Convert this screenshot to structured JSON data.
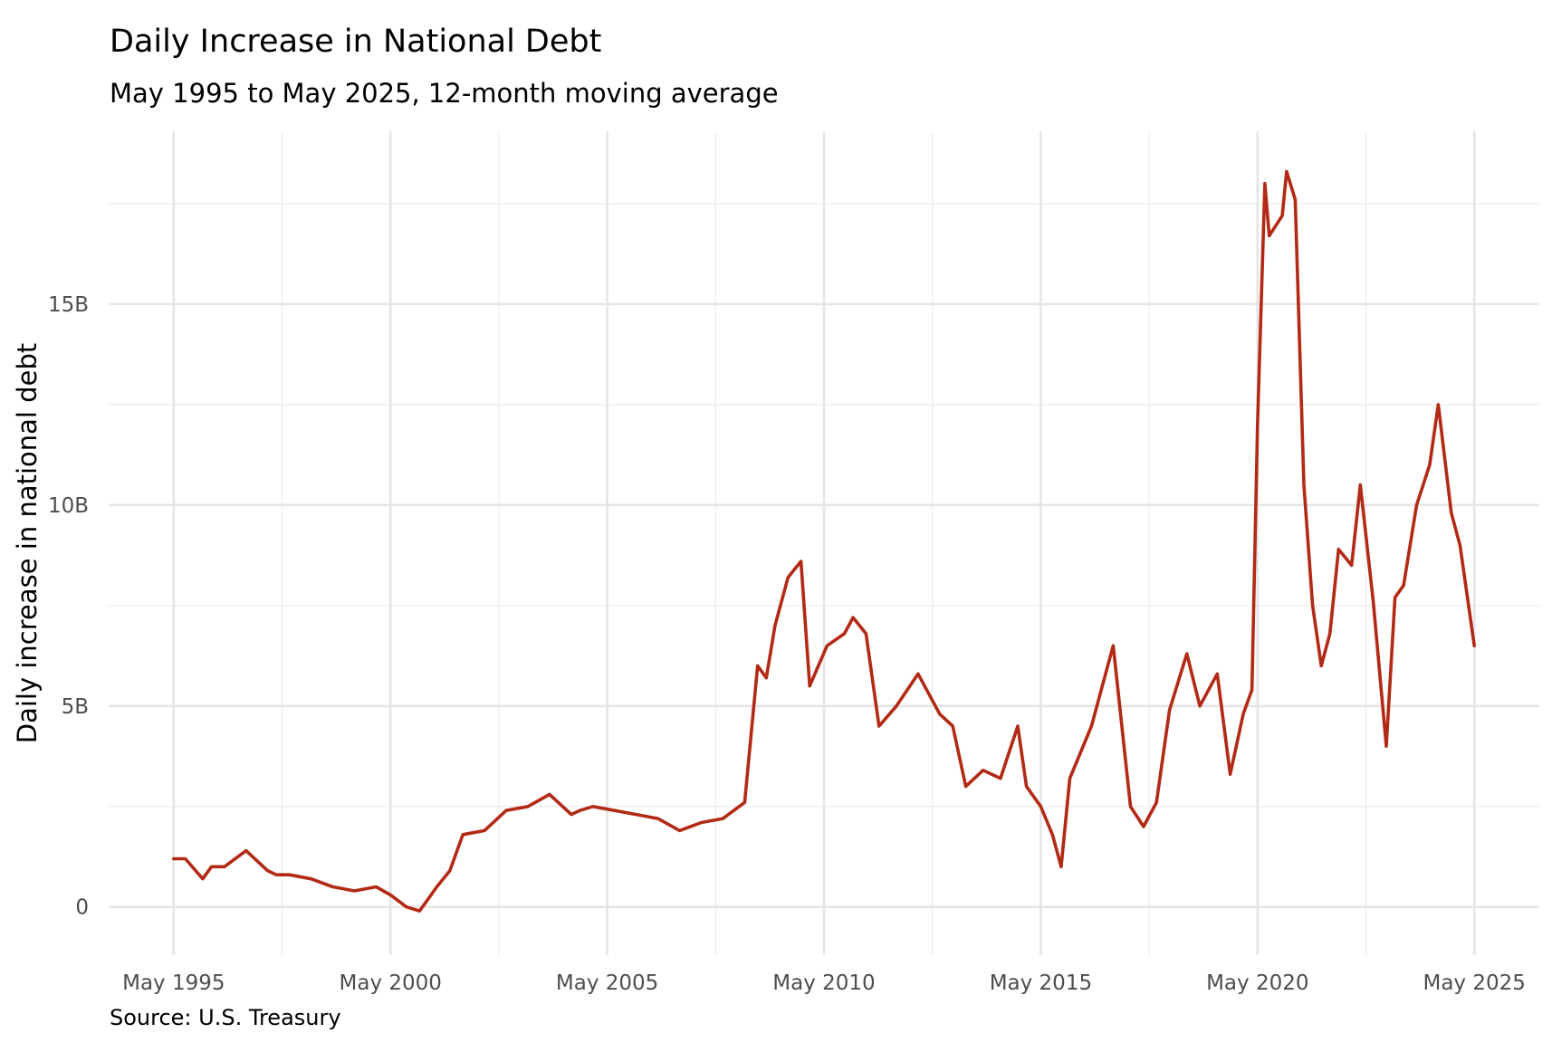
{
  "chart_data": {
    "type": "line",
    "title": "Daily Increase in National Debt",
    "subtitle": "May 1995 to May 2025, 12-month moving average",
    "ylabel": "Daily increase in national debt",
    "xlabel": "",
    "caption": "Source: U.S. Treasury",
    "x_ticks": [
      1995.33,
      2000.33,
      2005.33,
      2010.33,
      2015.33,
      2020.33,
      2025.33
    ],
    "x_tick_labels": [
      "May 1995",
      "May 2000",
      "May 2005",
      "May 2010",
      "May 2015",
      "May 2020",
      "May 2025"
    ],
    "y_ticks": [
      0,
      5,
      10,
      15
    ],
    "y_tick_labels": [
      "0",
      "5B",
      "10B",
      "15B"
    ],
    "xlim": [
      1993.83,
      2026.83
    ],
    "ylim": [
      -1.2,
      19.3
    ],
    "grid": true,
    "line_color": "#b22a15",
    "series": [
      {
        "x": [
          1995.33,
          1995.6,
          1996.0,
          1996.2,
          1996.5,
          1997.0,
          1997.5,
          1997.7,
          1998.0,
          1998.5,
          1999.0,
          1999.5,
          2000.0,
          2000.33,
          2000.7,
          2001.0,
          2001.2,
          2001.4,
          2001.7,
          2002.0,
          2002.5,
          2003.0,
          2003.5,
          2004.0,
          2004.5,
          2004.7,
          2005.0,
          2005.5,
          2006.0,
          2006.5,
          2007.0,
          2007.5,
          2008.0,
          2008.5,
          2008.8,
          2009.0,
          2009.2,
          2009.5,
          2009.8,
          2010.0,
          2010.4,
          2010.8,
          2011.0,
          2011.3,
          2011.6,
          2012.0,
          2012.5,
          2013.0,
          2013.3,
          2013.6,
          2014.0,
          2014.4,
          2014.8,
          2015.0,
          2015.33,
          2015.6,
          2015.8,
          2016.0,
          2016.5,
          2017.0,
          2017.4,
          2017.7,
          2018.0,
          2018.3,
          2018.7,
          2019.0,
          2019.4,
          2019.7,
          2020.0,
          2020.2,
          2020.33,
          2020.5,
          2020.6,
          2020.9,
          2021.0,
          2021.2,
          2021.4,
          2021.6,
          2021.8,
          2022.0,
          2022.2,
          2022.5,
          2022.7,
          2023.0,
          2023.3,
          2023.5,
          2023.7,
          2024.0,
          2024.3,
          2024.5,
          2024.8,
          2025.0,
          2025.33
        ],
        "y": [
          1.2,
          1.2,
          0.7,
          1.0,
          1.0,
          1.4,
          0.9,
          0.8,
          0.8,
          0.7,
          0.5,
          0.4,
          0.5,
          0.3,
          0.0,
          -0.1,
          0.2,
          0.5,
          0.9,
          1.8,
          1.9,
          2.4,
          2.5,
          2.8,
          2.3,
          2.4,
          2.5,
          2.4,
          2.3,
          2.2,
          1.9,
          2.1,
          2.2,
          2.6,
          6.0,
          5.7,
          7.0,
          8.2,
          8.6,
          5.5,
          6.5,
          6.8,
          7.2,
          6.8,
          4.5,
          5.0,
          5.8,
          4.8,
          4.5,
          3.0,
          3.4,
          3.2,
          4.5,
          3.0,
          2.5,
          1.8,
          1.0,
          3.2,
          4.5,
          6.5,
          2.5,
          2.0,
          2.6,
          4.9,
          6.3,
          5.0,
          5.8,
          3.3,
          4.8,
          5.4,
          12.0,
          18.0,
          16.7,
          17.2,
          18.3,
          17.6,
          10.5,
          7.5,
          6.0,
          6.8,
          8.9,
          8.5,
          10.5,
          7.6,
          4.0,
          7.7,
          8.0,
          10.0,
          11.0,
          12.5,
          9.8,
          9.0,
          6.5
        ]
      }
    ]
  }
}
